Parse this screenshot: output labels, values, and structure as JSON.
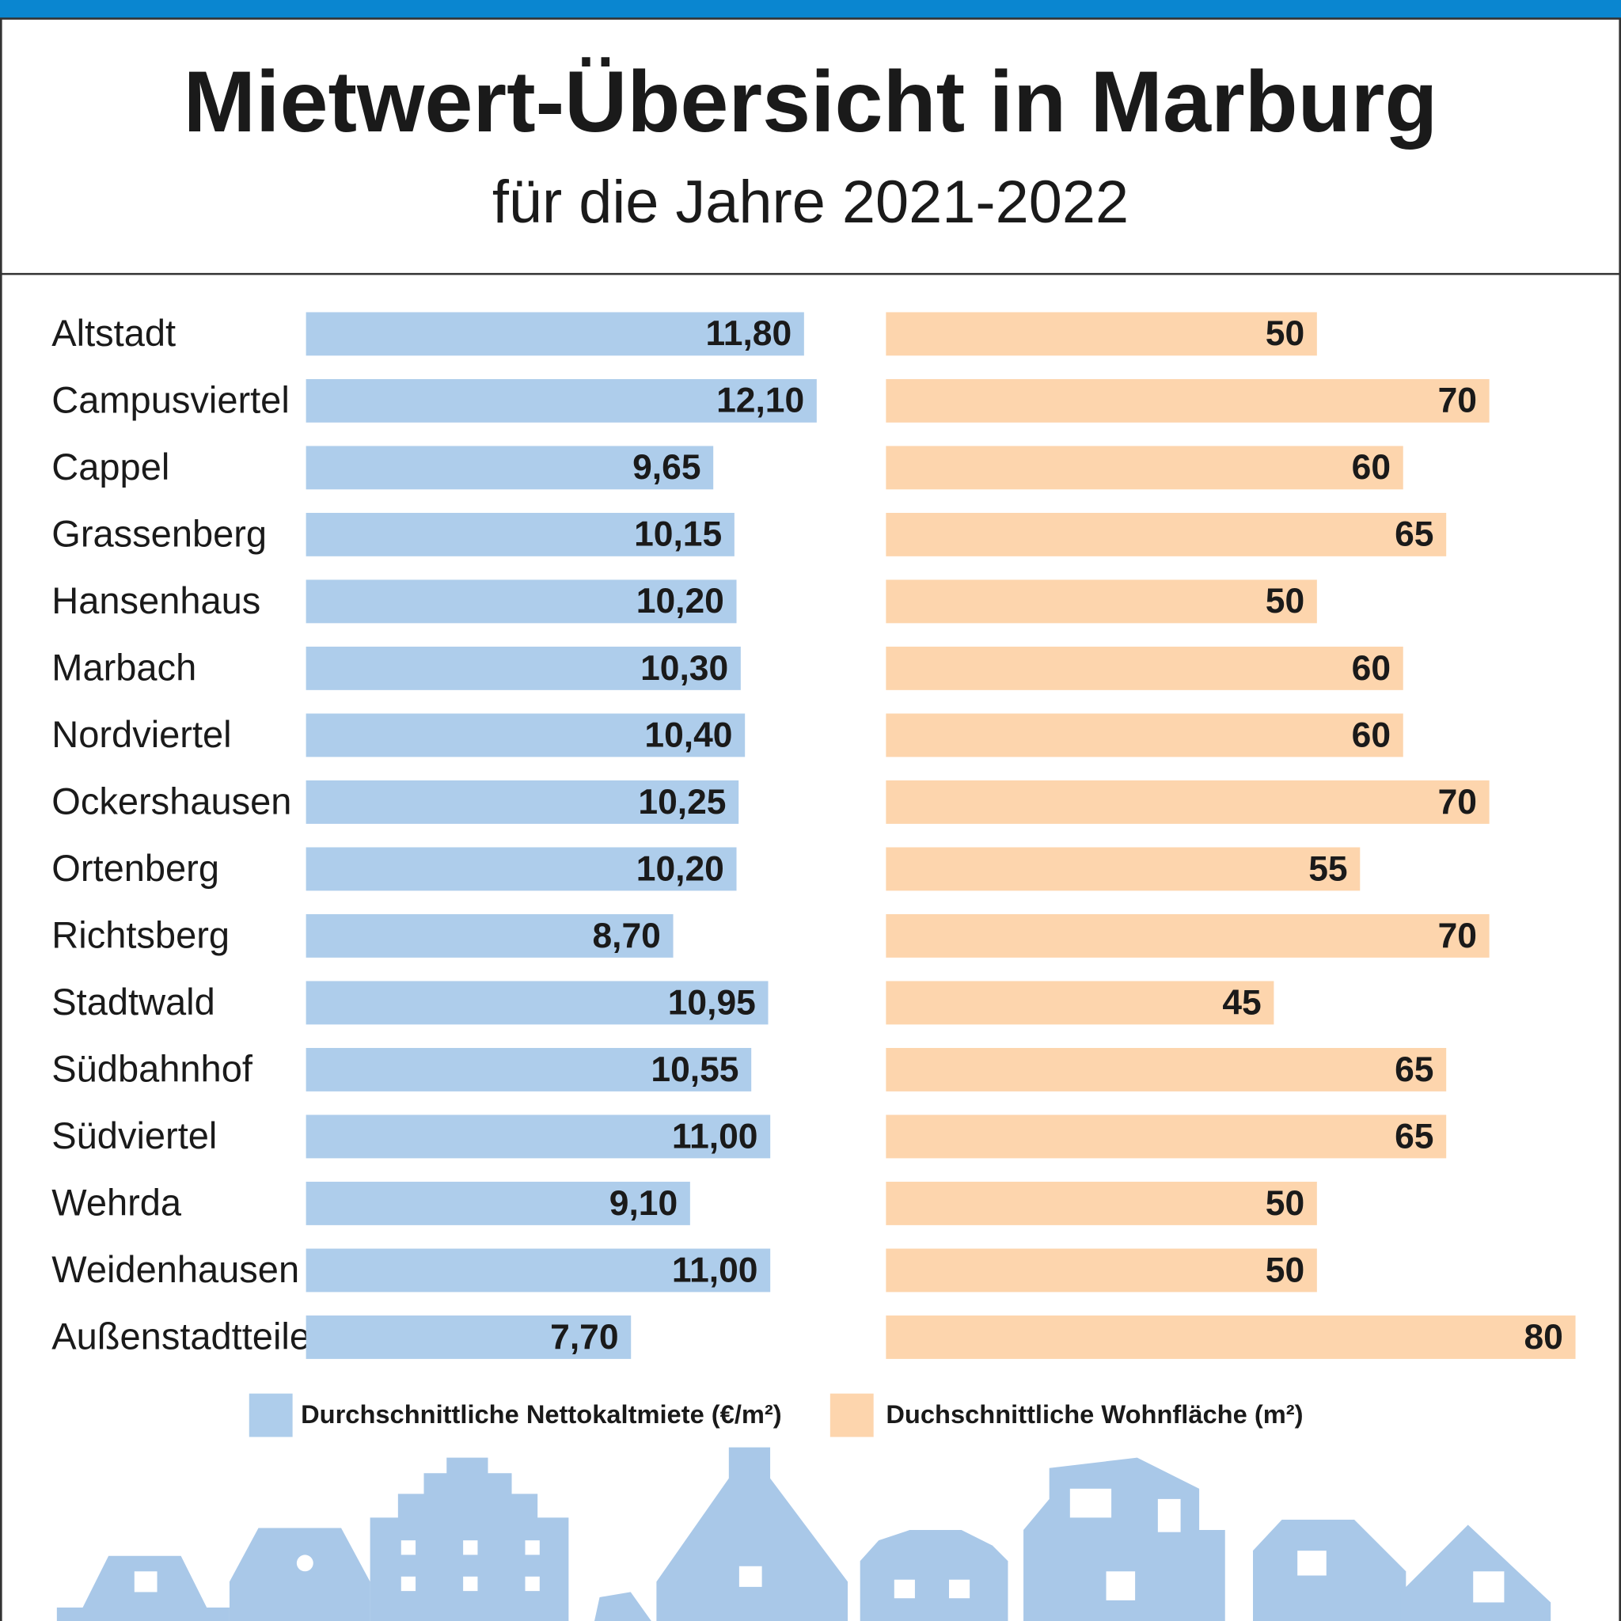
{
  "chart_data": {
    "type": "bar",
    "orientation": "horizontal",
    "title": "Mietwert-Übersicht in Marburg",
    "subtitle": "für die Jahre 2021-2022",
    "categories": [
      "Altstadt",
      "Campusviertel",
      "Cappel",
      "Grassenberg",
      "Hansenhaus",
      "Marbach",
      "Nordviertel",
      "Ockershausen",
      "Ortenberg",
      "Richtsberg",
      "Stadtwald",
      "Südbahnhof",
      "Südviertel",
      "Wehrda",
      "Weidenhausen",
      "Außenstadtteile"
    ],
    "series": [
      {
        "name": "Durchschnittliche Nettokaltmiete (€/m²)",
        "color": "#aecdeb",
        "values": [
          11.8,
          12.1,
          9.65,
          10.15,
          10.2,
          10.3,
          10.4,
          10.25,
          10.2,
          8.7,
          10.95,
          10.55,
          11.0,
          9.1,
          11.0,
          7.7
        ],
        "value_labels": [
          "11,80",
          "12,10",
          "9,65",
          "10,15",
          "10,20",
          "10,30",
          "10,40",
          "10,25",
          "10,20",
          "8,70",
          "10,95",
          "10,55",
          "11,00",
          "9,10",
          "11,00",
          "7,70"
        ]
      },
      {
        "name": "Duchschnittliche Wohnfläche (m²)",
        "color": "#fdd5ad",
        "values": [
          50,
          70,
          60,
          65,
          50,
          60,
          60,
          70,
          55,
          70,
          45,
          65,
          65,
          50,
          50,
          80
        ]
      }
    ]
  }
}
